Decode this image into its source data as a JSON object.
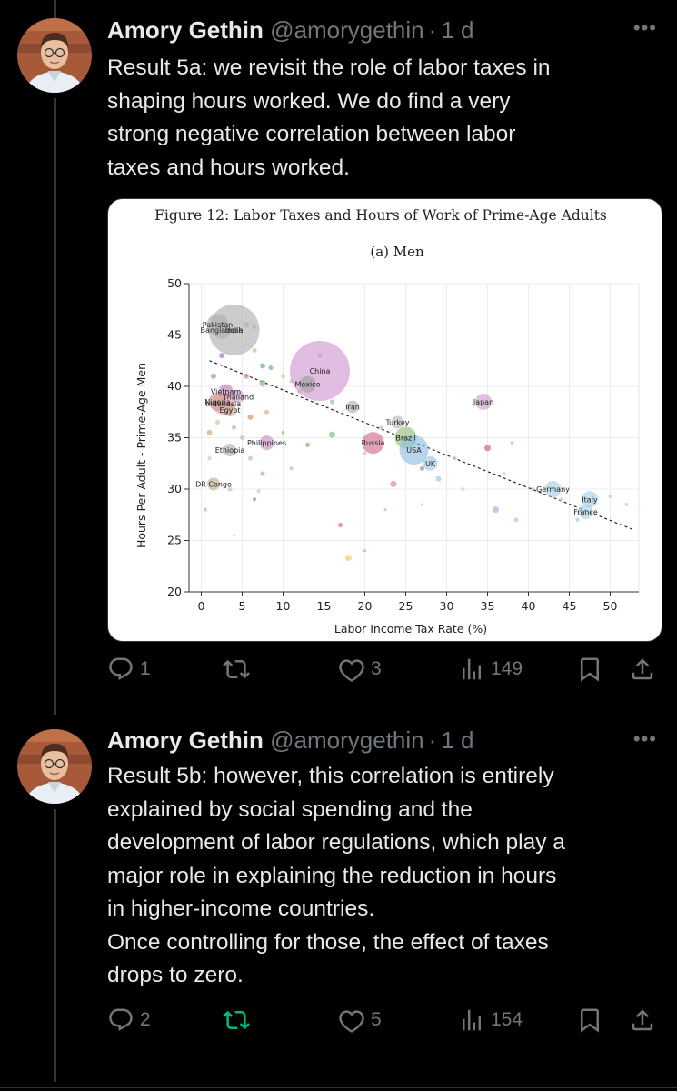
{
  "tweets": [
    {
      "name": "Amory Gethin",
      "handle": "@amorygethin",
      "time": "1 d",
      "text": "Result 5a: we revisit the role of labor taxes in\nshaping hours worked. We do find a very\nstrong negative correlation between labor\ntaxes and hours worked.",
      "actions": {
        "replies": "1",
        "retweets": "",
        "likes": "3",
        "views": "149"
      }
    },
    {
      "name": "Amory Gethin",
      "handle": "@amorygethin",
      "time": "1 d",
      "text": "Result 5b: however, this correlation is entirely\nexplained by social spending and the\ndevelopment of labor regulations, which play a\nmajor role in explaining the reduction in hours\nin higher-income countries.\nOnce controlling for those, the effect of taxes\ndrops to zero.",
      "actions": {
        "replies": "2",
        "retweets": "",
        "likes": "5",
        "views": "154"
      }
    }
  ],
  "figure": {
    "title": "Figure 12: Labor Taxes and Hours of Work of Prime-Age Adults",
    "subtitle": "(a) Men"
  },
  "colors": {
    "retweet_active": "#00ba7c",
    "muted": "#71767b"
  },
  "chart_data": {
    "type": "scatter",
    "title": "Figure 12: Labor Taxes and Hours of Work of Prime-Age Adults",
    "subtitle": "(a) Men",
    "xlabel": "Labor Income Tax Rate (%)",
    "ylabel": "Hours Per Adult - Prime-Age Men",
    "xlim": [
      -1.5,
      53.5
    ],
    "ylim": [
      20,
      50
    ],
    "xticks": [
      0,
      5,
      10,
      15,
      20,
      25,
      30,
      35,
      40,
      45,
      50
    ],
    "yticks": [
      20,
      25,
      30,
      35,
      40,
      45,
      50
    ],
    "grid": true,
    "fit_line": {
      "x": [
        1,
        53
      ],
      "y": [
        42.5,
        26
      ]
    },
    "labeled_points": [
      {
        "label": "Pakistan",
        "x": 2,
        "y": 46,
        "size": 12,
        "color": "#aaaaaa"
      },
      {
        "label": "Bangladesh",
        "x": 2.5,
        "y": 45.5,
        "size": 10,
        "color": "#b5b5b5"
      },
      {
        "label": "India",
        "x": 4,
        "y": 45.5,
        "size": 28,
        "color": "#b0b0b0"
      },
      {
        "label": "China",
        "x": 14.5,
        "y": 41.5,
        "size": 33,
        "color": "#d39ad3"
      },
      {
        "label": "Mexico",
        "x": 13,
        "y": 40.2,
        "size": 9,
        "color": "#a0a0a0"
      },
      {
        "label": "Vietnam",
        "x": 3,
        "y": 39.5,
        "size": 8,
        "color": "#c080c0"
      },
      {
        "label": "Thailand",
        "x": 4.5,
        "y": 39,
        "size": 7,
        "color": "#d0a0d0"
      },
      {
        "label": "Nigeria",
        "x": 2,
        "y": 38.5,
        "size": 10,
        "color": "#d09090"
      },
      {
        "label": "Indonesia",
        "x": 2.7,
        "y": 38.3,
        "size": 12,
        "color": "#d8a0a0"
      },
      {
        "label": "Egypt",
        "x": 3.5,
        "y": 37.7,
        "size": 7,
        "color": "#c8a890"
      },
      {
        "label": "Iran",
        "x": 18.5,
        "y": 38,
        "size": 7,
        "color": "#b0b0b0"
      },
      {
        "label": "Japan",
        "x": 34.5,
        "y": 38.5,
        "size": 9,
        "color": "#d0a0d0"
      },
      {
        "label": "Turkey",
        "x": 24,
        "y": 36.5,
        "size": 7,
        "color": "#b8b8b8"
      },
      {
        "label": "Philippines",
        "x": 8,
        "y": 34.5,
        "size": 8,
        "color": "#c890c8"
      },
      {
        "label": "Ethiopia",
        "x": 3.5,
        "y": 33.8,
        "size": 7,
        "color": "#b0b0b0"
      },
      {
        "label": "Russia",
        "x": 21,
        "y": 34.5,
        "size": 12,
        "color": "#d07090"
      },
      {
        "label": "Brazil",
        "x": 25,
        "y": 35,
        "size": 12,
        "color": "#90c080"
      },
      {
        "label": "USA",
        "x": 26,
        "y": 33.8,
        "size": 16,
        "color": "#90c0e0"
      },
      {
        "label": "UK",
        "x": 28,
        "y": 32.5,
        "size": 8,
        "color": "#a0c8e0"
      },
      {
        "label": "DR Congo",
        "x": 1.5,
        "y": 30.5,
        "size": 7,
        "color": "#c0b090"
      },
      {
        "label": "Germany",
        "x": 43,
        "y": 30,
        "size": 9,
        "color": "#a8d0e8"
      },
      {
        "label": "Italy",
        "x": 47.5,
        "y": 29,
        "size": 9,
        "color": "#a8d0e8"
      },
      {
        "label": "France",
        "x": 47,
        "y": 27.8,
        "size": 8,
        "color": "#a8d0e8"
      }
    ],
    "other_points": [
      {
        "x": 5.5,
        "y": 46,
        "size": 6,
        "color": "#c8a0b0"
      },
      {
        "x": 6.5,
        "y": 45.8,
        "size": 5,
        "color": "#d0b0b0"
      },
      {
        "x": 2.5,
        "y": 43,
        "size": 6,
        "color": "#b080c0"
      },
      {
        "x": 6.5,
        "y": 43.5,
        "size": 5,
        "color": "#e0c090"
      },
      {
        "x": 7.5,
        "y": 42,
        "size": 6,
        "color": "#90b080"
      },
      {
        "x": 8.5,
        "y": 41.8,
        "size": 5,
        "color": "#80b0a0"
      },
      {
        "x": 1.5,
        "y": 41,
        "size": 6,
        "color": "#a0a0a0"
      },
      {
        "x": 5.5,
        "y": 41,
        "size": 6,
        "color": "#c090c0"
      },
      {
        "x": 7.5,
        "y": 40.3,
        "size": 7,
        "color": "#90c090"
      },
      {
        "x": 10,
        "y": 41,
        "size": 5,
        "color": "#d0d0a0"
      },
      {
        "x": 11,
        "y": 40.5,
        "size": 4,
        "color": "#c0c0c0"
      },
      {
        "x": 12,
        "y": 39.5,
        "size": 5,
        "color": "#e0c090"
      },
      {
        "x": 14.5,
        "y": 43,
        "size": 4,
        "color": "#909090"
      },
      {
        "x": 16,
        "y": 38.5,
        "size": 5,
        "color": "#a0c0a0"
      },
      {
        "x": 6,
        "y": 37,
        "size": 6,
        "color": "#d0a080"
      },
      {
        "x": 8,
        "y": 37.5,
        "size": 5,
        "color": "#e0b090"
      },
      {
        "x": 2,
        "y": 36.5,
        "size": 5,
        "color": "#e0c0a0"
      },
      {
        "x": 4,
        "y": 36,
        "size": 5,
        "color": "#c0b0d0"
      },
      {
        "x": 1,
        "y": 35.5,
        "size": 6,
        "color": "#d0b090"
      },
      {
        "x": 5,
        "y": 35,
        "size": 5,
        "color": "#d0c0a0"
      },
      {
        "x": 10,
        "y": 35.5,
        "size": 4,
        "color": "#b0c090"
      },
      {
        "x": 13,
        "y": 34.3,
        "size": 5,
        "color": "#90b080"
      },
      {
        "x": 16,
        "y": 35.3,
        "size": 7,
        "color": "#90c090"
      },
      {
        "x": 22,
        "y": 36,
        "size": 4,
        "color": "#c0c0d0"
      },
      {
        "x": 20,
        "y": 33.5,
        "size": 4,
        "color": "#e0c0a0"
      },
      {
        "x": 6,
        "y": 33,
        "size": 5,
        "color": "#d0c0b0"
      },
      {
        "x": 1,
        "y": 33,
        "size": 4,
        "color": "#c0d0b0"
      },
      {
        "x": 11,
        "y": 32,
        "size": 4,
        "color": "#c0c0c0"
      },
      {
        "x": 7.5,
        "y": 31.5,
        "size": 5,
        "color": "#a0c0a0"
      },
      {
        "x": 3.5,
        "y": 30,
        "size": 5,
        "color": "#d0c0c0"
      },
      {
        "x": 7,
        "y": 29.8,
        "size": 4,
        "color": "#e0c0c0"
      },
      {
        "x": 6.5,
        "y": 29,
        "size": 4,
        "color": "#d070a0"
      },
      {
        "x": 0.5,
        "y": 28,
        "size": 4,
        "color": "#b0c0a0"
      },
      {
        "x": 23.5,
        "y": 30.5,
        "size": 7,
        "color": "#e090a0"
      },
      {
        "x": 27,
        "y": 32,
        "size": 5,
        "color": "#c080a0"
      },
      {
        "x": 29,
        "y": 31,
        "size": 6,
        "color": "#a0d0e0"
      },
      {
        "x": 31,
        "y": 33,
        "size": 4,
        "color": "#c0c0c0"
      },
      {
        "x": 32,
        "y": 30,
        "size": 4,
        "color": "#d0d0d0"
      },
      {
        "x": 35,
        "y": 34,
        "size": 7,
        "color": "#d07080"
      },
      {
        "x": 38,
        "y": 34.5,
        "size": 4,
        "color": "#e0b0c0"
      },
      {
        "x": 37,
        "y": 31.5,
        "size": 4,
        "color": "#c0d0e0"
      },
      {
        "x": 36,
        "y": 28,
        "size": 7,
        "color": "#a0c0e0"
      },
      {
        "x": 38.5,
        "y": 27,
        "size": 5,
        "color": "#b0d0e0"
      },
      {
        "x": 40.5,
        "y": 30,
        "size": 4,
        "color": "#a0c0e0"
      },
      {
        "x": 44,
        "y": 29,
        "size": 4,
        "color": "#c0d0e0"
      },
      {
        "x": 46,
        "y": 27,
        "size": 4,
        "color": "#b0c8e0"
      },
      {
        "x": 50,
        "y": 29.3,
        "size": 4,
        "color": "#b0d0e0"
      },
      {
        "x": 52,
        "y": 28.5,
        "size": 4,
        "color": "#b0d0e0"
      },
      {
        "x": 17,
        "y": 26.5,
        "size": 5,
        "color": "#e07090"
      },
      {
        "x": 18,
        "y": 23.3,
        "size": 7,
        "color": "#f0d080"
      },
      {
        "x": 20,
        "y": 24,
        "size": 3,
        "color": "#e0a0a0"
      },
      {
        "x": 4,
        "y": 25.5,
        "size": 3,
        "color": "#c0c0c0"
      },
      {
        "x": 22.5,
        "y": 28,
        "size": 3,
        "color": "#d0b0b0"
      },
      {
        "x": 27,
        "y": 28.5,
        "size": 3,
        "color": "#c0c0c0"
      }
    ]
  }
}
